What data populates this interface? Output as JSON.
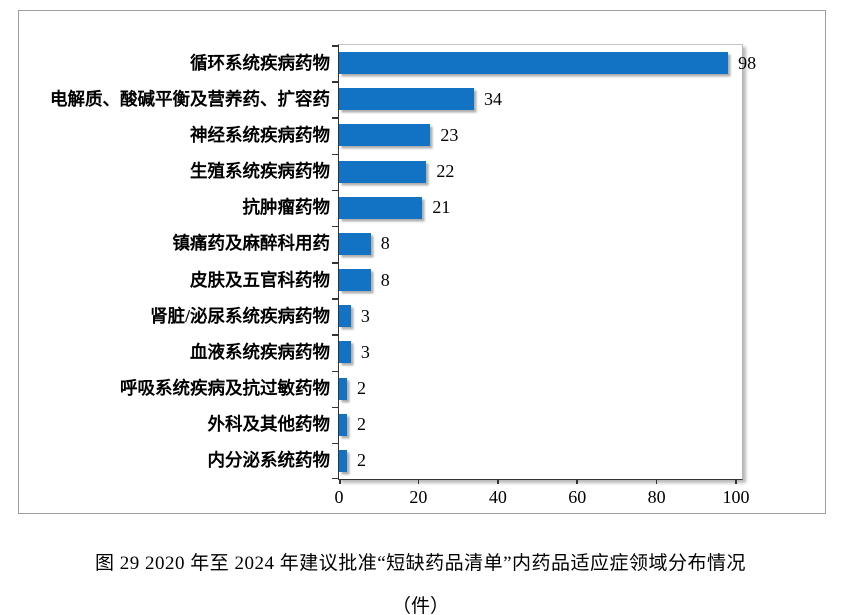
{
  "chart_data": {
    "type": "bar",
    "orientation": "horizontal",
    "categories": [
      "循环系统疾病药物",
      "电解质、酸碱平衡及营养药、扩容药",
      "神经系统疾病药物",
      "生殖系统疾病药物",
      "抗肿瘤药物",
      "镇痛药及麻醉科用药",
      "皮肤及五官科药物",
      "肾脏/泌尿系统疾病药物",
      "血液系统疾病药物",
      "呼吸系统疾病及抗过敏药物",
      "外科及其他药物",
      "内分泌系统药物"
    ],
    "values": [
      98,
      34,
      23,
      22,
      21,
      8,
      8,
      3,
      3,
      2,
      2,
      2
    ],
    "value_labels": [
      "98",
      "34",
      "23",
      "22",
      "21",
      "8",
      "8",
      "3",
      "3",
      "2",
      "2",
      "2"
    ],
    "x_ticks": [
      0,
      20,
      40,
      60,
      80,
      100
    ],
    "xlim": [
      0,
      101.5
    ],
    "bar_color": "#1273C4",
    "grid": false,
    "legend": "none",
    "title": ""
  },
  "figure": {
    "caption_line1": "图 29  2020 年至 2024 年建议批准“短缺药品清单”内药品适应症领域分布情况",
    "caption_line2": "（件）"
  }
}
